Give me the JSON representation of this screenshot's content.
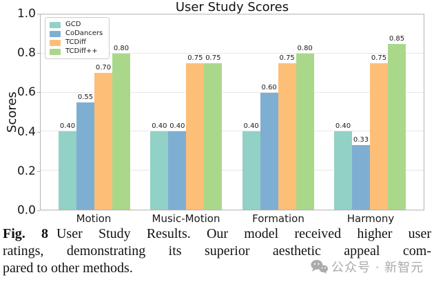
{
  "chart_data": {
    "type": "bar",
    "title": "User Study Scores",
    "xlabel": "",
    "ylabel": "Scores",
    "ylim": [
      0.0,
      1.0
    ],
    "yticks": [
      "1.0",
      "0.8",
      "0.6",
      "0.4",
      "0.2",
      "0.0"
    ],
    "grid": true,
    "legend_position": "upper left",
    "categories": [
      "Motion",
      "Music-Motion",
      "Formation",
      "Harmony"
    ],
    "series": [
      {
        "name": "GCD",
        "color": "#92d1c6",
        "values": [
          0.4,
          0.4,
          0.4,
          0.4
        ]
      },
      {
        "name": "CoDancers",
        "color": "#7faed3",
        "values": [
          0.55,
          0.4,
          0.6,
          0.33
        ]
      },
      {
        "name": "TCDiff",
        "color": "#fdbe78",
        "values": [
          0.7,
          0.75,
          0.75,
          0.75
        ]
      },
      {
        "name": "TCDiff++",
        "color": "#a9d88b",
        "values": [
          0.8,
          0.75,
          0.8,
          0.85
        ]
      }
    ],
    "bar_value_labels": true,
    "axis_color": "#b3b3b3",
    "gridline_color": "#e7e7e7"
  },
  "caption": {
    "label": "Fig. 8",
    "line1": "User Study Results. Our model received higher user",
    "line2": "ratings, demonstrating its superior aesthetic appeal com-",
    "line3": "pared to other methods."
  },
  "watermark": {
    "text": "公众号 · 新智元",
    "icon": "wechat-icon",
    "color": "#ababab"
  }
}
